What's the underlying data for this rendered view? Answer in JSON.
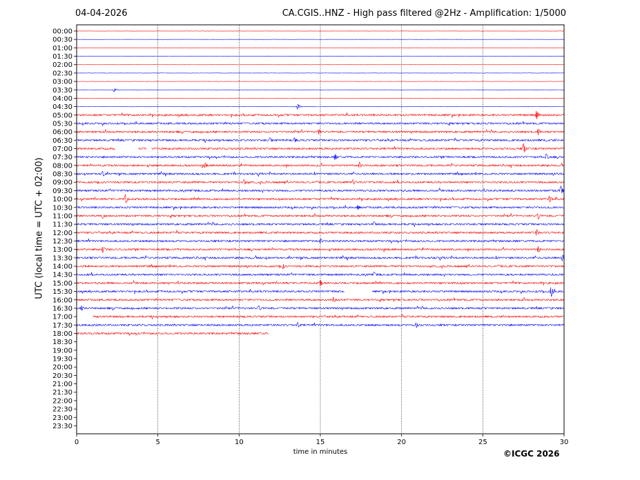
{
  "header": {
    "date": "04-04-2026",
    "title": "CA.CGIS..HNZ - High pass filtered @2Hz - Amplification: 1/5000"
  },
  "footer": {
    "copyright": "©ICGC 2026"
  },
  "colors": {
    "even_rows": "#ff0000",
    "odd_rows": "#0000ff",
    "grid": "#000000",
    "background": "#ffffff"
  },
  "chart_data": {
    "type": "line",
    "chart_kind": "helicorder",
    "xlabel": "time in minutes",
    "ylabel": "UTC (local time = UTC + 02:00)",
    "xlim": [
      0,
      30
    ],
    "x_ticks": [
      "0",
      "5",
      "10",
      "15",
      "20",
      "25",
      "30"
    ],
    "x_tick_values": [
      0,
      5,
      10,
      15,
      20,
      25,
      30
    ],
    "vertical_gridlines_at_minutes": [
      5,
      10,
      15,
      20,
      25
    ],
    "row_labels": [
      "00:00",
      "00:30",
      "01:00",
      "01:30",
      "02:00",
      "02:30",
      "03:00",
      "03:30",
      "04:00",
      "04:30",
      "05:00",
      "05:30",
      "06:00",
      "06:30",
      "07:00",
      "07:30",
      "08:00",
      "08:30",
      "09:00",
      "09:30",
      "10:00",
      "10:30",
      "11:00",
      "11:30",
      "12:00",
      "12:30",
      "13:00",
      "13:30",
      "14:00",
      "14:30",
      "15:00",
      "15:30",
      "16:00",
      "16:30",
      "17:00",
      "17:30",
      "18:00",
      "18:30",
      "19:00",
      "19:30",
      "20:00",
      "20:30",
      "21:00",
      "21:30",
      "22:00",
      "22:30",
      "23:00",
      "23:30"
    ],
    "trace_end_minute": {
      "18:00": 11.8,
      "default": 30
    },
    "trace_start_minute": {
      "17:00": 1.0,
      "default": 0
    },
    "gaps": [
      {
        "row": "07:00",
        "from": 2.4,
        "to": 3.8
      },
      {
        "row": "07:00",
        "from": 4.3,
        "to": 4.6
      },
      {
        "row": "15:30",
        "from": 16.5,
        "to": 18.2
      }
    ],
    "quiet_rows": [
      "00:00",
      "00:30",
      "01:00",
      "01:30",
      "02:00",
      "02:30",
      "03:00",
      "03:30",
      "04:00",
      "04:30"
    ],
    "notable_events": [
      {
        "row": "03:30",
        "minute": 2.3,
        "amplitude": 3
      },
      {
        "row": "04:30",
        "minute": 13.6,
        "amplitude": 4
      },
      {
        "row": "05:00",
        "minute": 28.3,
        "amplitude": 7
      },
      {
        "row": "06:00",
        "minute": 28.4,
        "amplitude": 5
      },
      {
        "row": "06:00",
        "minute": 14.9,
        "amplitude": 4
      },
      {
        "row": "06:30",
        "minute": 11.9,
        "amplitude": 4
      },
      {
        "row": "06:30",
        "minute": 13.4,
        "amplitude": 4
      },
      {
        "row": "07:00",
        "minute": 27.5,
        "amplitude": 8
      },
      {
        "row": "07:30",
        "minute": 15.9,
        "amplitude": 5
      },
      {
        "row": "07:30",
        "minute": 28.9,
        "amplitude": 5
      },
      {
        "row": "08:00",
        "minute": 17.4,
        "amplitude": 5
      },
      {
        "row": "08:00",
        "minute": 7.9,
        "amplitude": 4
      },
      {
        "row": "08:30",
        "minute": 1.6,
        "amplitude": 4
      },
      {
        "row": "09:00",
        "minute": 10.3,
        "amplitude": 4
      },
      {
        "row": "09:00",
        "minute": 17.0,
        "amplitude": 4
      },
      {
        "row": "09:30",
        "minute": 29.8,
        "amplitude": 7
      },
      {
        "row": "10:00",
        "minute": 3.0,
        "amplitude": 7
      },
      {
        "row": "10:00",
        "minute": 29.1,
        "amplitude": 5
      },
      {
        "row": "10:30",
        "minute": 17.3,
        "amplitude": 4
      },
      {
        "row": "11:00",
        "minute": 28.4,
        "amplitude": 5
      },
      {
        "row": "11:00",
        "minute": 1.6,
        "amplitude": 4
      },
      {
        "row": "11:30",
        "minute": 18.3,
        "amplitude": 4
      },
      {
        "row": "12:00",
        "minute": 28.3,
        "amplitude": 5
      },
      {
        "row": "12:30",
        "minute": 15.0,
        "amplitude": 4
      },
      {
        "row": "13:00",
        "minute": 28.4,
        "amplitude": 5
      },
      {
        "row": "13:00",
        "minute": 1.6,
        "amplitude": 5
      },
      {
        "row": "13:30",
        "minute": 29.9,
        "amplitude": 5
      },
      {
        "row": "14:00",
        "minute": 12.7,
        "amplitude": 4
      },
      {
        "row": "14:30",
        "minute": 18.3,
        "amplitude": 4
      },
      {
        "row": "15:00",
        "minute": 15.0,
        "amplitude": 5
      },
      {
        "row": "15:30",
        "minute": 29.2,
        "amplitude": 8
      },
      {
        "row": "16:00",
        "minute": 15.8,
        "amplitude": 4
      },
      {
        "row": "16:30",
        "minute": 0.3,
        "amplitude": 4
      },
      {
        "row": "16:30",
        "minute": 11.2,
        "amplitude": 4
      },
      {
        "row": "17:30",
        "minute": 13.6,
        "amplitude": 4
      },
      {
        "row": "17:30",
        "minute": 20.9,
        "amplitude": 4
      }
    ]
  }
}
